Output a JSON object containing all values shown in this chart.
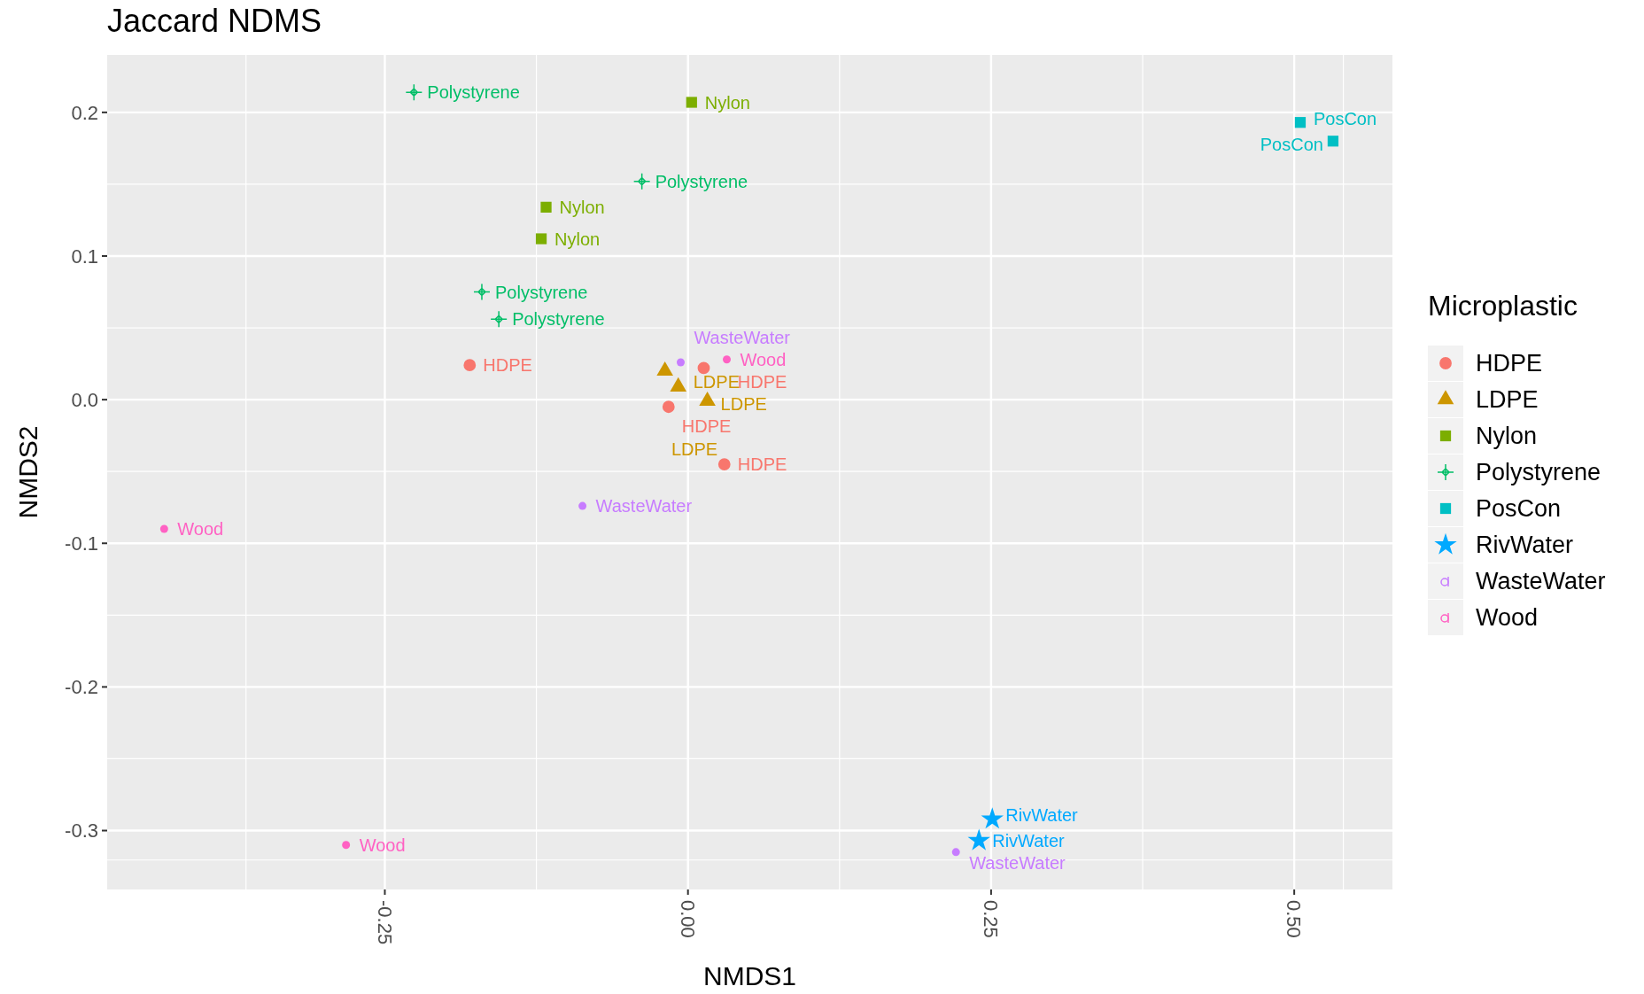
{
  "chart_data": {
    "type": "scatter",
    "title": "Jaccard NDMS",
    "xlabel": "NMDS1",
    "ylabel": "NMDS2",
    "legend_title": "Microplastic",
    "legend": "right",
    "grid": true,
    "xlim": [
      -0.479,
      0.581
    ],
    "ylim": [
      -0.341,
      0.24
    ],
    "xticks": [
      -0.25,
      {
        "value": 0,
        "label": "0.00"
      },
      0.25,
      {
        "value": 0.5,
        "label": "0.50"
      }
    ],
    "yticks": [
      -0.3,
      -0.2,
      -0.1,
      {
        "value": 0,
        "label": "0.0"
      },
      0.1,
      0.2
    ],
    "series": [
      {
        "name": "HDPE",
        "color": "#f8766d",
        "marker": "circle",
        "x": [
          -0.18,
          -0.016,
          0.03,
          0.013
        ],
        "values": [
          0.024,
          -0.005,
          -0.045,
          0.022
        ]
      },
      {
        "name": "LDPE",
        "color": "#cd9600",
        "marker": "triangle",
        "x": [
          -0.019,
          -0.008,
          0.016
        ],
        "values": [
          0.02,
          0.009,
          -0.001
        ]
      },
      {
        "name": "Nylon",
        "color": "#7cae00",
        "marker": "square",
        "x": [
          0.003,
          -0.117,
          -0.121
        ],
        "values": [
          0.207,
          0.134,
          0.112
        ]
      },
      {
        "name": "Polystyrene",
        "color": "#00be67",
        "marker": "cross",
        "x": [
          -0.226,
          -0.038,
          -0.17,
          -0.156
        ],
        "values": [
          0.214,
          0.152,
          0.075,
          0.056
        ]
      },
      {
        "name": "PosCon",
        "color": "#00bfc4",
        "marker": "square",
        "x": [
          0.505,
          0.532
        ],
        "values": [
          0.193,
          0.18
        ]
      },
      {
        "name": "RivWater",
        "color": "#00a9ff",
        "marker": "star",
        "x": [
          0.251,
          0.24
        ],
        "values": [
          -0.292,
          -0.307
        ]
      },
      {
        "name": "WasteWater",
        "color": "#c77cff",
        "x": [
          -0.006,
          -0.087,
          0.221
        ],
        "values": [
          0.026,
          -0.074,
          -0.315
        ]
      },
      {
        "name": "Wood",
        "color": "#ff61c3",
        "x": [
          0.032,
          -0.432,
          -0.282
        ],
        "values": [
          0.028,
          -0.09,
          -0.31
        ]
      }
    ]
  }
}
